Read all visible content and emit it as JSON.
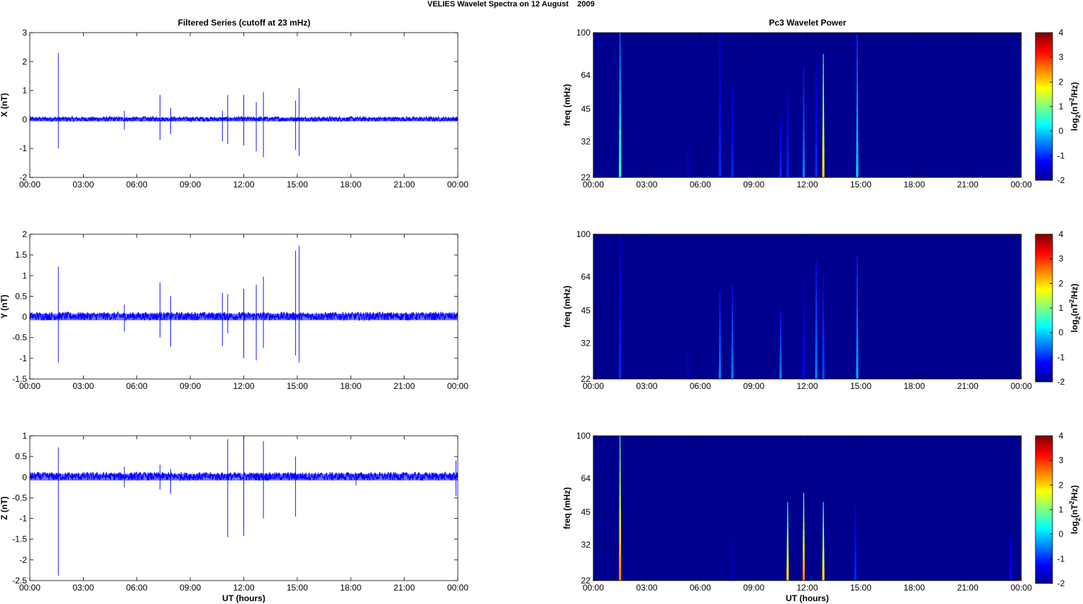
{
  "figure": {
    "suptitle": "VELIES Wavelet Spectra on 12 August    2009",
    "left_title": "Filtered Series (cutoff at 23 mHz)",
    "right_title": "Pc3 Wavelet Power",
    "xlabel": "UT (hours)",
    "colorbar_label": "log2(nT2/Hz)",
    "colors": {
      "trace": "#0000ff",
      "spectrum_background": "#00008f",
      "axes": "#000000"
    }
  },
  "chart_data": [
    {
      "type": "line",
      "title": "Filtered Series (cutoff at 23 mHz)",
      "ylabel": "X (nT)",
      "xlabel": "",
      "xlim": [
        0,
        24
      ],
      "ylim": [
        -2,
        3
      ],
      "xticks": [
        "00:00",
        "03:00",
        "06:00",
        "09:00",
        "12:00",
        "15:00",
        "18:00",
        "21:00",
        "00:00"
      ],
      "yticks": [
        "-2",
        "-1",
        "0",
        "1",
        "2",
        "3"
      ],
      "series": [
        {
          "color": "#0000ff"
        }
      ],
      "noise_amplitude": 0.08,
      "spikes": [
        {
          "x": 1.6,
          "y": 2.3
        },
        {
          "x": 1.6,
          "y": -1.0
        },
        {
          "x": 5.3,
          "y": 0.3
        },
        {
          "x": 5.3,
          "y": -0.35
        },
        {
          "x": 7.3,
          "y": 0.85
        },
        {
          "x": 7.3,
          "y": -0.7
        },
        {
          "x": 7.9,
          "y": 0.4
        },
        {
          "x": 7.9,
          "y": -0.5
        },
        {
          "x": 10.8,
          "y": 0.3
        },
        {
          "x": 10.8,
          "y": -0.75
        },
        {
          "x": 11.1,
          "y": 0.85
        },
        {
          "x": 11.1,
          "y": -0.85
        },
        {
          "x": 12.0,
          "y": 0.85
        },
        {
          "x": 12.0,
          "y": -0.9
        },
        {
          "x": 12.7,
          "y": 0.6
        },
        {
          "x": 12.7,
          "y": -1.1
        },
        {
          "x": 13.1,
          "y": 0.95
        },
        {
          "x": 13.1,
          "y": -1.3
        },
        {
          "x": 14.9,
          "y": 0.65
        },
        {
          "x": 14.9,
          "y": -1.05
        },
        {
          "x": 15.1,
          "y": 1.08
        },
        {
          "x": 15.1,
          "y": -1.25
        }
      ]
    },
    {
      "type": "line",
      "ylabel": "Y (nT)",
      "xlim": [
        0,
        24
      ],
      "ylim": [
        -1.5,
        2
      ],
      "xticks": [
        "00:00",
        "03:00",
        "06:00",
        "09:00",
        "12:00",
        "15:00",
        "18:00",
        "21:00",
        "00:00"
      ],
      "yticks": [
        "-1.5",
        "-1",
        "-0.5",
        "0",
        "0.5",
        "1",
        "1.5",
        "2"
      ],
      "series": [
        {
          "color": "#0000ff"
        }
      ],
      "noise_amplitude": 0.1,
      "spikes": [
        {
          "x": 1.6,
          "y": 1.22
        },
        {
          "x": 1.6,
          "y": -1.1
        },
        {
          "x": 5.3,
          "y": 0.3
        },
        {
          "x": 5.3,
          "y": -0.35
        },
        {
          "x": 7.3,
          "y": 0.83
        },
        {
          "x": 7.3,
          "y": -0.5
        },
        {
          "x": 7.9,
          "y": 0.5
        },
        {
          "x": 7.9,
          "y": -0.72
        },
        {
          "x": 10.8,
          "y": 0.58
        },
        {
          "x": 10.8,
          "y": -0.7
        },
        {
          "x": 11.1,
          "y": 0.55
        },
        {
          "x": 11.1,
          "y": -0.4
        },
        {
          "x": 12.0,
          "y": 0.68
        },
        {
          "x": 12.0,
          "y": -1.0
        },
        {
          "x": 12.7,
          "y": 0.78
        },
        {
          "x": 12.7,
          "y": -1.05
        },
        {
          "x": 13.1,
          "y": 0.97
        },
        {
          "x": 13.1,
          "y": -0.75
        },
        {
          "x": 14.9,
          "y": 1.6
        },
        {
          "x": 14.9,
          "y": -0.93
        },
        {
          "x": 15.1,
          "y": 1.72
        },
        {
          "x": 15.1,
          "y": -1.1
        }
      ]
    },
    {
      "type": "line",
      "ylabel": "Z (nT)",
      "xlabel": "UT (hours)",
      "xlim": [
        0,
        24
      ],
      "ylim": [
        -2.5,
        1
      ],
      "xticks": [
        "00:00",
        "03:00",
        "06:00",
        "09:00",
        "12:00",
        "15:00",
        "18:00",
        "21:00",
        "00:00"
      ],
      "yticks": [
        "-2.5",
        "-2",
        "-1.5",
        "-1",
        "-0.5",
        "0",
        "0.5",
        "1"
      ],
      "series": [
        {
          "color": "#0000ff"
        }
      ],
      "noise_amplitude": 0.1,
      "spikes": [
        {
          "x": 1.6,
          "y": 0.72
        },
        {
          "x": 1.6,
          "y": -2.38
        },
        {
          "x": 5.3,
          "y": 0.25
        },
        {
          "x": 5.3,
          "y": -0.25
        },
        {
          "x": 7.3,
          "y": 0.3
        },
        {
          "x": 7.3,
          "y": -0.3
        },
        {
          "x": 7.9,
          "y": 0.2
        },
        {
          "x": 7.9,
          "y": -0.4
        },
        {
          "x": 11.1,
          "y": 0.92
        },
        {
          "x": 11.1,
          "y": -1.45
        },
        {
          "x": 12.0,
          "y": 1.0
        },
        {
          "x": 12.0,
          "y": -1.42
        },
        {
          "x": 13.1,
          "y": 0.87
        },
        {
          "x": 13.1,
          "y": -1.0
        },
        {
          "x": 14.9,
          "y": 0.5
        },
        {
          "x": 14.9,
          "y": -0.95
        },
        {
          "x": 18.3,
          "y": 0.1
        },
        {
          "x": 18.3,
          "y": -0.2
        },
        {
          "x": 23.9,
          "y": 0.4
        },
        {
          "x": 23.9,
          "y": -0.45
        }
      ]
    },
    {
      "type": "heatmap",
      "title": "Pc3 Wavelet Power",
      "ylabel": "freq (mHz)",
      "xlim": [
        0,
        24
      ],
      "ylim": [
        22,
        100
      ],
      "yscale": "log",
      "xticks": [
        "00:00",
        "03:00",
        "06:00",
        "09:00",
        "12:00",
        "15:00",
        "18:00",
        "21:00",
        "00:00"
      ],
      "yticks": [
        "22",
        "32",
        "45",
        "64",
        "100"
      ],
      "clim": [
        -2,
        4
      ],
      "cticks": [
        "-2",
        "-1",
        "0",
        "1",
        "2",
        "3",
        "4"
      ],
      "colorbar_label": "log2(nT2/Hz)",
      "bursts": [
        {
          "x": 1.5,
          "peak": 0.5,
          "top": 100
        },
        {
          "x": 5.3,
          "peak": -1.6,
          "top": 35
        },
        {
          "x": 7.1,
          "peak": -1.0,
          "top": 98
        },
        {
          "x": 7.8,
          "peak": -1.0,
          "top": 58
        },
        {
          "x": 10.5,
          "peak": -1.0,
          "top": 42
        },
        {
          "x": 10.9,
          "peak": -1.0,
          "top": 58
        },
        {
          "x": 11.8,
          "peak": -0.5,
          "top": 70
        },
        {
          "x": 12.5,
          "peak": -1.0,
          "top": 75
        },
        {
          "x": 12.9,
          "peak": 2.0,
          "top": 80
        },
        {
          "x": 14.8,
          "peak": 0.0,
          "top": 98
        }
      ]
    },
    {
      "type": "heatmap",
      "ylabel": "freq (mHz)",
      "xlim": [
        0,
        24
      ],
      "ylim": [
        22,
        100
      ],
      "yscale": "log",
      "xticks": [
        "00:00",
        "03:00",
        "06:00",
        "09:00",
        "12:00",
        "15:00",
        "18:00",
        "21:00",
        "00:00"
      ],
      "yticks": [
        "22",
        "32",
        "45",
        "64",
        "100"
      ],
      "clim": [
        -2,
        4
      ],
      "cticks": [
        "-2",
        "-1",
        "0",
        "1",
        "2",
        "3",
        "4"
      ],
      "colorbar_label": "log2(nT2/Hz)",
      "bursts": [
        {
          "x": 1.5,
          "peak": -1.0,
          "top": 100
        },
        {
          "x": 5.3,
          "peak": -1.6,
          "top": 35
        },
        {
          "x": 7.1,
          "peak": -0.5,
          "top": 55
        },
        {
          "x": 7.8,
          "peak": -0.5,
          "top": 58
        },
        {
          "x": 10.5,
          "peak": -0.5,
          "top": 45
        },
        {
          "x": 11.8,
          "peak": -1.2,
          "top": 62
        },
        {
          "x": 12.5,
          "peak": -0.5,
          "top": 75
        },
        {
          "x": 12.9,
          "peak": -0.8,
          "top": 65
        },
        {
          "x": 14.8,
          "peak": -0.3,
          "top": 80
        }
      ]
    },
    {
      "type": "heatmap",
      "ylabel": "freq (mHz)",
      "xlabel": "UT (hours)",
      "xlim": [
        0,
        24
      ],
      "ylim": [
        22,
        100
      ],
      "yscale": "log",
      "xticks": [
        "00:00",
        "03:00",
        "06:00",
        "09:00",
        "12:00",
        "15:00",
        "18:00",
        "21:00",
        "00:00"
      ],
      "yticks": [
        "22",
        "32",
        "45",
        "64",
        "100"
      ],
      "clim": [
        -2,
        4
      ],
      "cticks": [
        "-2",
        "-1",
        "0",
        "1",
        "2",
        "3",
        "4"
      ],
      "colorbar_label": "log2(nT2/Hz)",
      "bursts": [
        {
          "x": 1.5,
          "peak": 2.5,
          "top": 100
        },
        {
          "x": 7.8,
          "peak": -1.6,
          "top": 35
        },
        {
          "x": 10.9,
          "peak": 2.0,
          "top": 50
        },
        {
          "x": 11.8,
          "peak": 2.5,
          "top": 55
        },
        {
          "x": 12.9,
          "peak": 2.0,
          "top": 50
        },
        {
          "x": 14.7,
          "peak": -1.0,
          "top": 48
        },
        {
          "x": 23.4,
          "peak": -1.2,
          "top": 35
        }
      ]
    }
  ]
}
